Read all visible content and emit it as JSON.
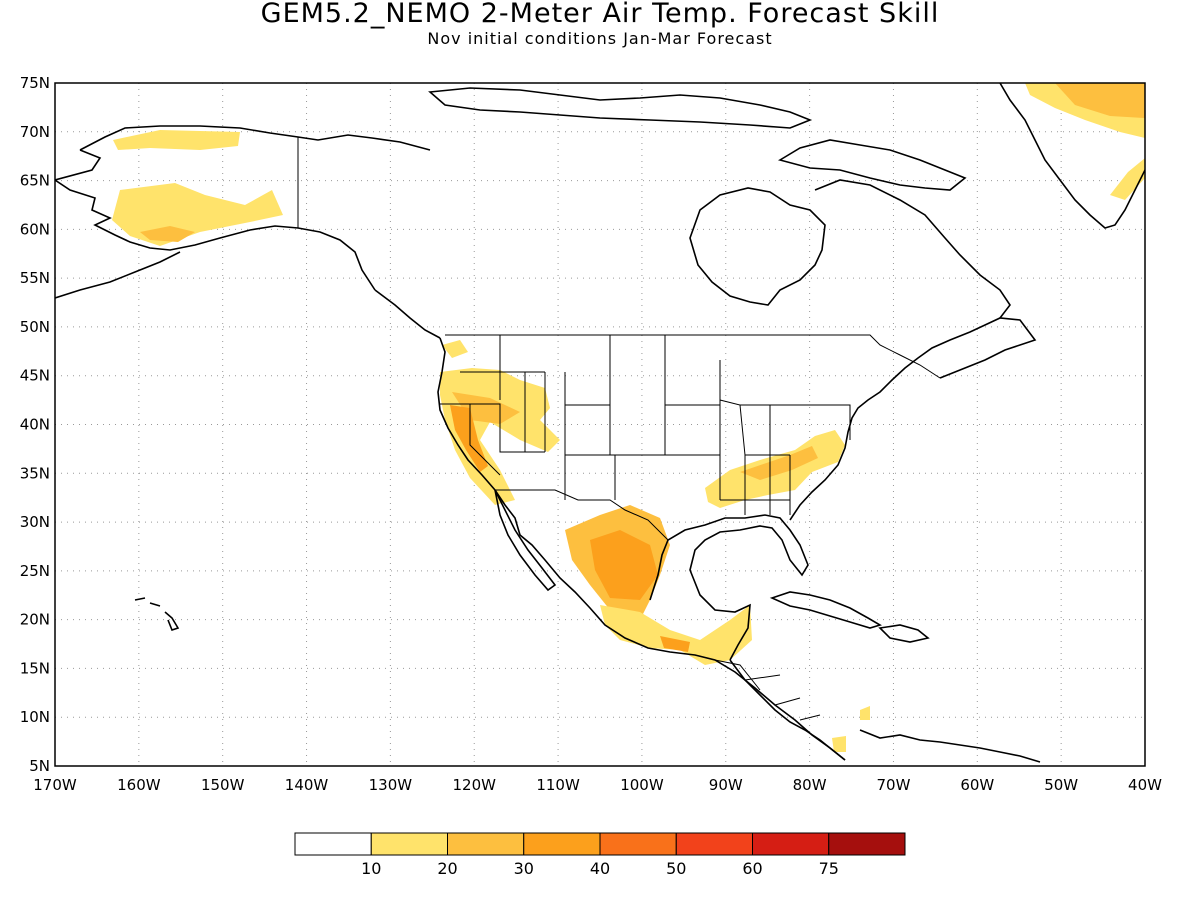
{
  "title": "GEM5.2_NEMO 2-Meter Air Temp. Forecast Skill",
  "subtitle": "Nov initial conditions  Jan-Mar Forecast",
  "map": {
    "lat_labels": [
      "75N",
      "70N",
      "65N",
      "60N",
      "55N",
      "50N",
      "45N",
      "40N",
      "35N",
      "30N",
      "25N",
      "20N",
      "15N",
      "10N",
      "5N"
    ],
    "lon_labels": [
      "170W",
      "160W",
      "150W",
      "140W",
      "130W",
      "120W",
      "110W",
      "100W",
      "90W",
      "80W",
      "70W",
      "60W",
      "50W",
      "40W"
    ],
    "skill_regions": [
      {
        "region": "Alaska",
        "level": "10-20"
      },
      {
        "region": "US Pacific Northwest / Great Basin",
        "level": "10-20"
      },
      {
        "region": "California Central Valley",
        "level": "20-30"
      },
      {
        "region": "US Southeast",
        "level": "10-20"
      },
      {
        "region": "Northern Mexico",
        "level": "20-30"
      },
      {
        "region": "Southern Mexico / Central America",
        "level": "10-20"
      },
      {
        "region": "Greenland",
        "level": "20-30"
      }
    ]
  },
  "colorbar": {
    "tick_labels": [
      "10",
      "20",
      "30",
      "40",
      "50",
      "60",
      "75"
    ],
    "colors": [
      "#ffffff",
      "#ffe36b",
      "#fdbf3f",
      "#fca01c",
      "#f9711a",
      "#f2421b",
      "#d51e14",
      "#a50f0d"
    ]
  },
  "chart_data": {
    "type": "heatmap",
    "title": "GEM5.2_NEMO 2-Meter Air Temp. Forecast Skill",
    "subtitle": "Nov initial conditions  Jan-Mar Forecast",
    "xlim": [
      "170W",
      "40W"
    ],
    "ylim": [
      "5N",
      "75N"
    ],
    "grid": true,
    "colorbar_levels": [
      10,
      20,
      30,
      40,
      50,
      60,
      75
    ],
    "legend": "bottom"
  }
}
